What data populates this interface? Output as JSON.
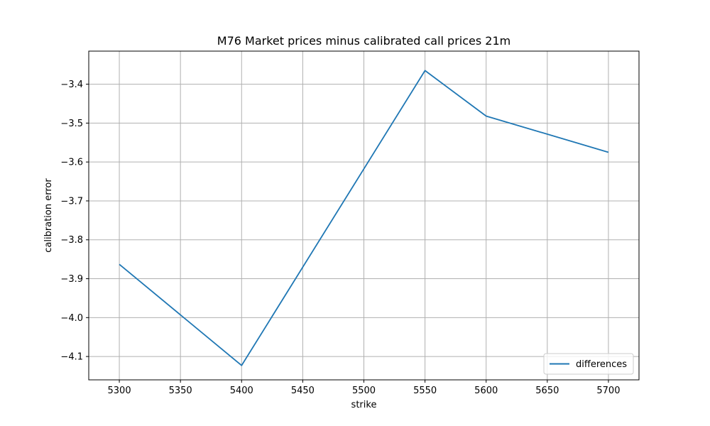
{
  "chart_data": {
    "type": "line",
    "title": "M76 Market prices minus calibrated call prices 21m",
    "xlabel": "strike",
    "ylabel": "calibration error",
    "xlim": [
      5275,
      5725
    ],
    "ylim": [
      -4.16,
      -3.315
    ],
    "xticks": [
      5300,
      5350,
      5400,
      5450,
      5500,
      5550,
      5600,
      5650,
      5700
    ],
    "yticks": [
      -4.1,
      -4.0,
      -3.9,
      -3.8,
      -3.7,
      -3.6,
      -3.5,
      -3.4
    ],
    "grid": true,
    "legend_position": "lower-right",
    "series": [
      {
        "name": "differences",
        "color": "#1f77b4",
        "x": [
          5300,
          5400,
          5550,
          5600,
          5700
        ],
        "y": [
          -3.863,
          -4.123,
          -3.365,
          -3.482,
          -3.575
        ]
      }
    ]
  }
}
